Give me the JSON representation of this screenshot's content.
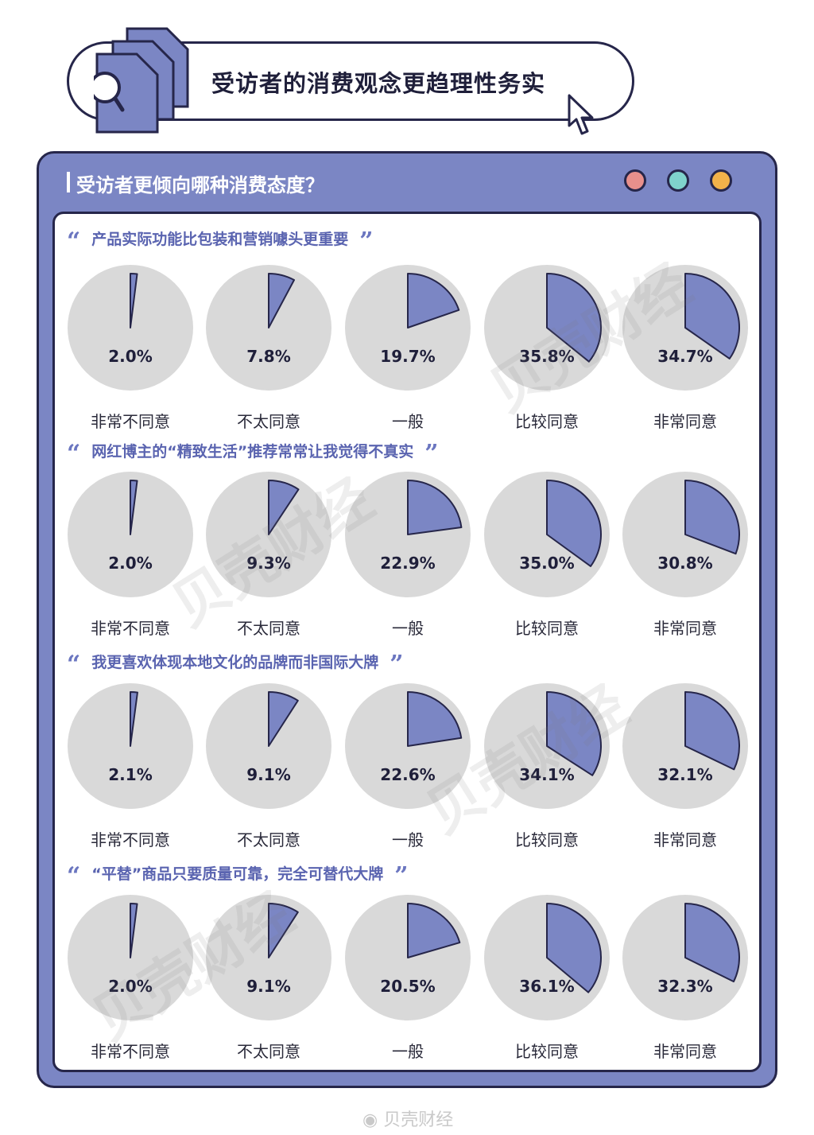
{
  "header": {
    "title": "受访者的消费观念更趋理性务实"
  },
  "panel": {
    "question": "受访者更倾向哪种消费态度？",
    "dot_colors": [
      "#e8908c",
      "#7fd3cc",
      "#f2b24a"
    ]
  },
  "colors": {
    "slice": "#7b86c4",
    "pie_bg": "#d9d9d9",
    "outline": "#26264a"
  },
  "open_quote": "“",
  "close_quote": "”",
  "chart_data": [
    {
      "type": "pie",
      "title": "产品实际功能比包装和营销噱头更重要",
      "categories": [
        "非常不同意",
        "不太同意",
        "一般",
        "比较同意",
        "非常同意"
      ],
      "values": [
        2.0,
        7.8,
        19.7,
        35.8,
        34.7
      ],
      "labels": [
        "2.0%",
        "7.8%",
        "19.7%",
        "35.8%",
        "34.7%"
      ]
    },
    {
      "type": "pie",
      "title": "网红博主的“精致生活”推荐常常让我觉得不真实",
      "categories": [
        "非常不同意",
        "不太同意",
        "一般",
        "比较同意",
        "非常同意"
      ],
      "values": [
        2.0,
        9.3,
        22.9,
        35.0,
        30.8
      ],
      "labels": [
        "2.0%",
        "9.3%",
        "22.9%",
        "35.0%",
        "30.8%"
      ]
    },
    {
      "type": "pie",
      "title": "我更喜欢体现本地文化的品牌而非国际大牌",
      "categories": [
        "非常不同意",
        "不太同意",
        "一般",
        "比较同意",
        "非常同意"
      ],
      "values": [
        2.1,
        9.1,
        22.6,
        34.1,
        32.1
      ],
      "labels": [
        "2.1%",
        "9.1%",
        "22.6%",
        "34.1%",
        "32.1%"
      ]
    },
    {
      "type": "pie",
      "title": "“平替”商品只要质量可靠，完全可替代大牌",
      "categories": [
        "非常不同意",
        "不太同意",
        "一般",
        "比较同意",
        "非常同意"
      ],
      "values": [
        2.0,
        9.1,
        20.5,
        36.1,
        32.3
      ],
      "labels": [
        "2.0%",
        "9.1%",
        "20.5%",
        "36.1%",
        "32.3%"
      ]
    }
  ],
  "watermark": "贝壳财经",
  "footer": {
    "logo_text": "贝壳财经"
  }
}
